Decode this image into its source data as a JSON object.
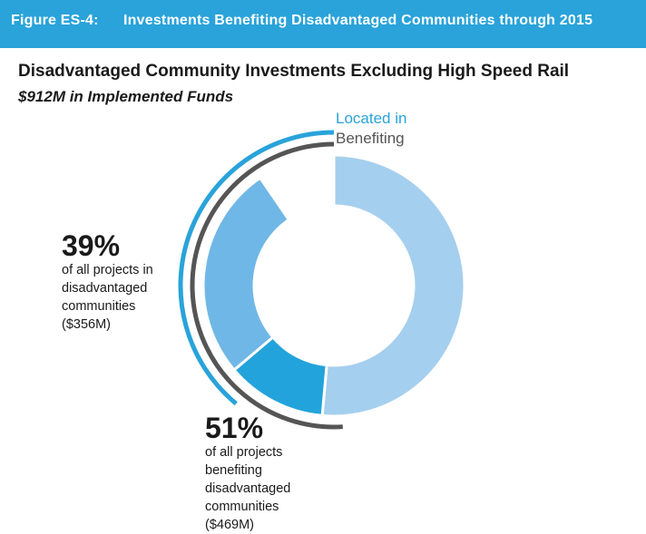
{
  "header": {
    "figure_label": "Figure ES-4:",
    "title": "Investments Benefiting Disadvantaged Communities through 2015",
    "background": "#29a3da"
  },
  "chart_data": {
    "type": "donut",
    "title": "Disadvantaged Community Investments Excluding High Speed Rail",
    "subtitle": "$912M in Implemented Funds",
    "total_millions": 912,
    "slices": [
      {
        "value": 469,
        "color": "#a5cfee"
      },
      {
        "value": 113,
        "color": "#23a3db"
      },
      {
        "value": 243,
        "color": "#6fb7e6"
      },
      {
        "value": 87,
        "color": "#ffffff"
      }
    ],
    "arcs": [
      {
        "label": "Located in",
        "percent": 39,
        "color": "#29a3da"
      },
      {
        "label": "Benefiting",
        "percent": 51,
        "color": "#555555"
      }
    ],
    "annotations": {
      "located": {
        "percent_text": "39%",
        "lines": [
          "of all projects in",
          "disadvantaged",
          "communities",
          "($356M)"
        ]
      },
      "benefiting": {
        "percent_text": "51%",
        "lines": [
          "of all projects",
          "benefiting",
          "disadvantaged",
          "communities",
          "($469M)"
        ]
      }
    }
  }
}
